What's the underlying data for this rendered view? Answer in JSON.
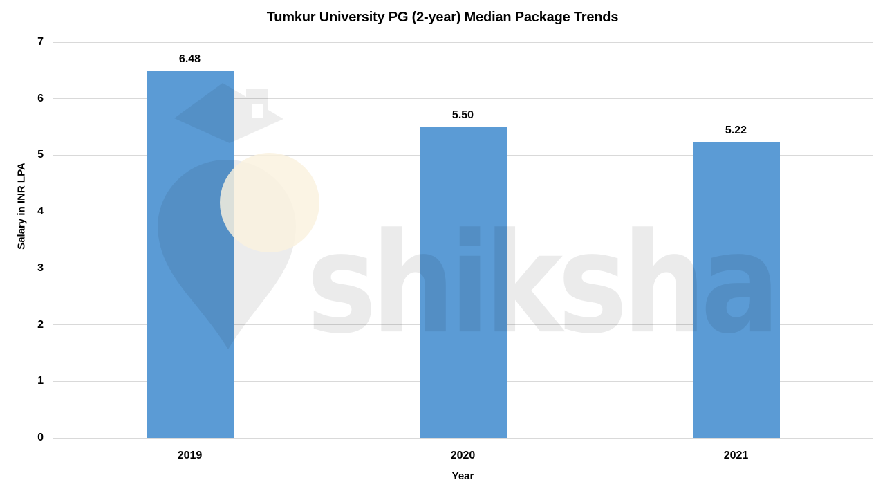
{
  "watermark": {
    "brand": "shiksha",
    "logo_icon": "graduation-cap-pin-icon"
  },
  "chart_data": {
    "type": "bar",
    "title": "Tumkur University PG (2-year) Median Package Trends",
    "categories": [
      "2019",
      "2020",
      "2021"
    ],
    "values": [
      6.48,
      5.5,
      5.22
    ],
    "value_labels": [
      "6.48",
      "5.50",
      "5.22"
    ],
    "xlabel": "Year",
    "ylabel": "Salary in INR LPA",
    "ylim": [
      0,
      7
    ],
    "yticks": [
      0,
      1,
      2,
      3,
      4,
      5,
      6,
      7
    ],
    "grid": true,
    "legend": "none",
    "bar_color": "#5B9BD5",
    "gridline_color": "#D9D9D9",
    "text_color": "#000000",
    "background_color": "#FFFFFF"
  }
}
